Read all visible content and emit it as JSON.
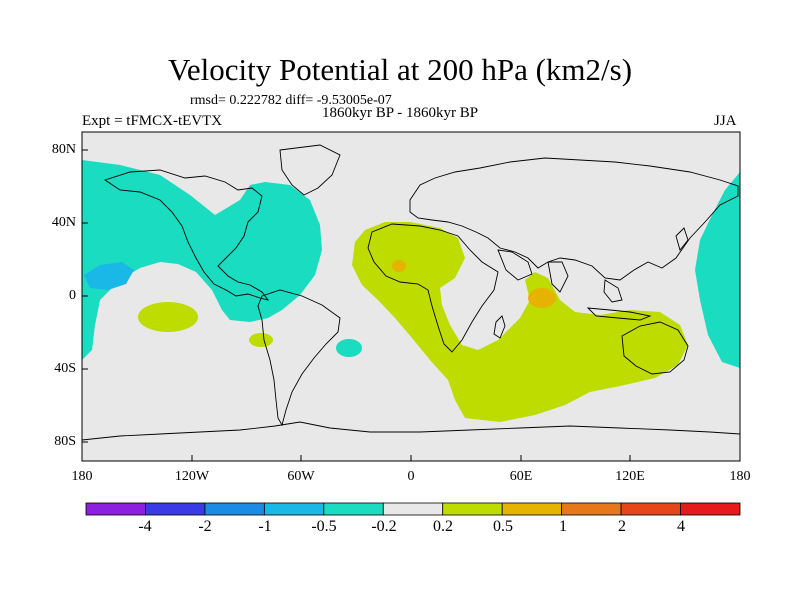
{
  "chart_data": {
    "type": "contour-map",
    "title": "Velocity Potential at 200 hPa (km2/s)",
    "stats": "rmsd= 0.222782 diff= -9.53005e-07",
    "experiment": "Expt = tFMCX-tEVTX",
    "period": "1860kyr BP - 1860kyr BP",
    "season": "JJA",
    "x_ticks": [
      "180",
      "120W",
      "60W",
      "0",
      "60E",
      "120E",
      "180"
    ],
    "y_ticks": [
      "80N",
      "40N",
      "0",
      "40S",
      "80S"
    ],
    "xlim": [
      -180,
      180
    ],
    "ylim": [
      -90,
      90
    ],
    "colorbar": {
      "levels": [
        "-4",
        "-2",
        "-1",
        "-0.5",
        "-0.2",
        "0.2",
        "0.5",
        "1",
        "2",
        "4"
      ],
      "colors": [
        "#8c1fe0",
        "#3a3ae6",
        "#1a8ce6",
        "#1ab8e6",
        "#19dcc0",
        "#e8e8e8",
        "#bedc00",
        "#e6b400",
        "#e6781a",
        "#e6461a",
        "#e61a1a"
      ]
    },
    "regions": [
      {
        "name": "negative-north-pacific-atlantic",
        "color": "#19dcc0"
      },
      {
        "name": "negative-east-pacific-core",
        "color": "#1ab8e6"
      },
      {
        "name": "positive-africa-indian-ocean",
        "color": "#bedc00"
      },
      {
        "name": "positive-west-africa-core",
        "color": "#e6b400"
      },
      {
        "name": "positive-arabian-sea-core",
        "color": "#e6b400"
      }
    ]
  }
}
